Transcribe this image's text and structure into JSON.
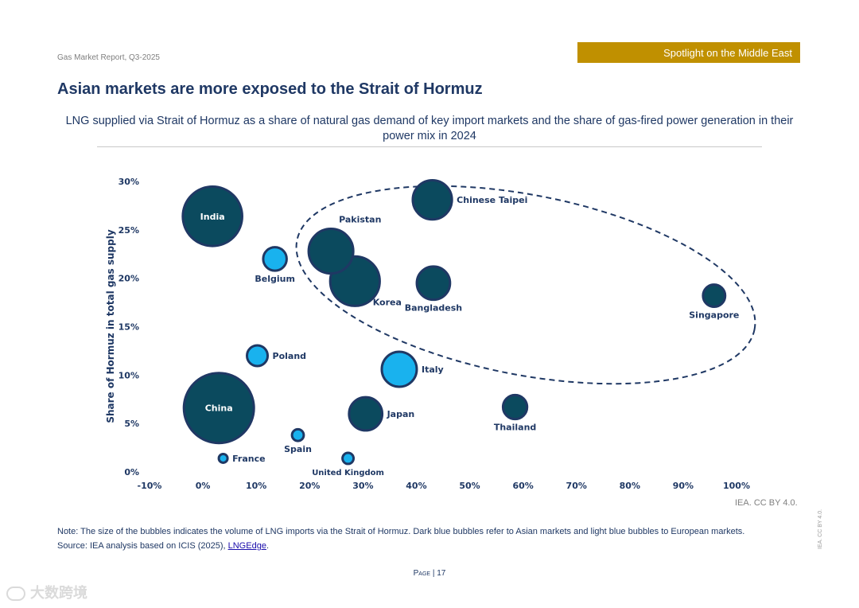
{
  "header": {
    "report_name": "Gas Market Report, Q3-2025",
    "spotlight": "Spotlight on the Middle East"
  },
  "page_title": "Asian markets are more exposed to the Strait of Hormuz",
  "chart_data": {
    "type": "scatter",
    "title": "LNG supplied via Strait of Hormuz as a share of natural gas demand of key import markets and the share of gas-fired power generation in their power mix in 2024",
    "xlabel": "",
    "ylabel": "Share of Hormuz in total gas supply",
    "xlim": [
      -10,
      100
    ],
    "ylim": [
      0,
      30
    ],
    "x_ticks": [
      "-10%",
      "0%",
      "10%",
      "20%",
      "30%",
      "40%",
      "50%",
      "60%",
      "70%",
      "80%",
      "90%",
      "100%"
    ],
    "y_ticks": [
      "0%",
      "5%",
      "10%",
      "15%",
      "20%",
      "25%",
      "30%"
    ],
    "grid": false,
    "bubble_size_meaning": "volume of LNG imports via the Strait of Hormuz",
    "colors": {
      "asia": "#0b4a5e",
      "europe": "#19b2ee",
      "outline": "#1f3864"
    },
    "points": [
      {
        "name": "India",
        "x": 1.8,
        "y": 26.4,
        "size": 11.5,
        "group": "asia",
        "label_pos": "inside"
      },
      {
        "name": "China",
        "x": 3.0,
        "y": 6.6,
        "size": 16.0,
        "group": "asia",
        "label_pos": "inside"
      },
      {
        "name": "Chinese Taipei",
        "x": 43.0,
        "y": 28.1,
        "size": 5.0,
        "group": "asia",
        "label_pos": "right"
      },
      {
        "name": "Pakistan",
        "x": 24.0,
        "y": 22.8,
        "size": 6.5,
        "group": "asia",
        "label_pos": "top-right"
      },
      {
        "name": "Korea",
        "x": 28.5,
        "y": 19.7,
        "size": 8.0,
        "group": "asia",
        "label_pos": "bottom-right"
      },
      {
        "name": "Bangladesh",
        "x": 43.2,
        "y": 19.5,
        "size": 3.6,
        "group": "asia",
        "label_pos": "bottom"
      },
      {
        "name": "Singapore",
        "x": 95.8,
        "y": 18.2,
        "size": 1.6,
        "group": "asia",
        "label_pos": "bottom"
      },
      {
        "name": "Japan",
        "x": 30.5,
        "y": 6.0,
        "size": 3.6,
        "group": "asia",
        "label_pos": "right"
      },
      {
        "name": "Thailand",
        "x": 58.5,
        "y": 6.7,
        "size": 1.9,
        "group": "asia",
        "label_pos": "bottom"
      },
      {
        "name": "Belgium",
        "x": 13.5,
        "y": 22.0,
        "size": 1.8,
        "group": "europe",
        "label_pos": "bottom"
      },
      {
        "name": "Poland",
        "x": 10.2,
        "y": 12.0,
        "size": 1.4,
        "group": "europe",
        "label_pos": "right"
      },
      {
        "name": "Italy",
        "x": 36.8,
        "y": 10.6,
        "size": 4.0,
        "group": "europe",
        "label_pos": "right"
      },
      {
        "name": "Spain",
        "x": 17.8,
        "y": 3.8,
        "size": 0.45,
        "group": "europe",
        "label_pos": "bottom"
      },
      {
        "name": "France",
        "x": 3.8,
        "y": 1.4,
        "size": 0.25,
        "group": "europe",
        "label_pos": "right"
      },
      {
        "name": "United Kingdom",
        "x": 27.2,
        "y": 1.4,
        "size": 0.4,
        "group": "europe",
        "label_pos": "bottom"
      }
    ],
    "annotation": "dashed ellipse around the Asian markets cluster"
  },
  "credit": "IEA. CC BY 4.0.",
  "note": {
    "text": "Note: The size of the bubbles indicates the volume of LNG imports via the Strait of Hormuz. Dark blue bubbles refer to Asian markets and light blue bubbles to European markets.",
    "source_prefix": "Source: IEA analysis based on ICIS (2025), ",
    "source_link": "LNGEdge",
    "source_suffix": "."
  },
  "footer": {
    "page_word": "Page",
    "page_sep": " | ",
    "page_number": "17",
    "side_credit": "IEA. CC BY 4.0."
  },
  "watermark": "大数跨境"
}
